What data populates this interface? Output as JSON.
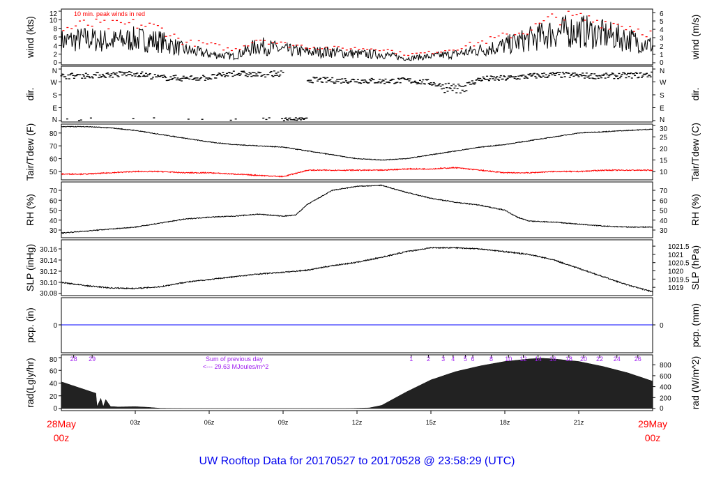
{
  "title": "UW Rooftop Data for 20170527  to  20170528 @ 23:58:29  (UTC)",
  "colors": {
    "title": "#0000ee",
    "date_labels": "#ff0000",
    "peak_winds": "#ff0000",
    "dewpoint": "#ff0000",
    "precip": "#0000ff",
    "radiation_fill": "#222222",
    "hourly_labels": "#a020f0",
    "line": "#000000"
  },
  "x_axis": {
    "start_date": "28May",
    "start_time": "00z",
    "end_date": "29May",
    "end_time": "00z",
    "ticks": [
      {
        "h": 3,
        "label": "03z"
      },
      {
        "h": 6,
        "label": "06z"
      },
      {
        "h": 9,
        "label": "09z"
      },
      {
        "h": 12,
        "label": "12z"
      },
      {
        "h": 15,
        "label": "15z"
      },
      {
        "h": 18,
        "label": "18z"
      },
      {
        "h": 21,
        "label": "21z"
      }
    ],
    "range_hours": [
      0,
      24
    ]
  },
  "chart_data": [
    {
      "type": "line",
      "id": "wind",
      "ylabel": "wind (kts)",
      "ylabel_right": "wind (m/s)",
      "annotation": "10 min. peak winds in red",
      "ylim": [
        0,
        12.5
      ],
      "yticks": [
        0,
        2,
        4,
        6,
        8,
        10,
        12
      ],
      "yticks_right": [
        0,
        1,
        2,
        3,
        4,
        5,
        6
      ],
      "hours": [
        0,
        1,
        2,
        3,
        4,
        5,
        6,
        7,
        8,
        9,
        10,
        11,
        12,
        13,
        14,
        15,
        16,
        17,
        18,
        19,
        20,
        21,
        22,
        23,
        24
      ],
      "series": [
        {
          "id": "mean",
          "values": [
            5,
            5.5,
            5,
            5.5,
            5,
            3,
            2,
            1.5,
            4,
            3,
            2.5,
            2.5,
            2,
            2,
            1,
            1.5,
            2,
            3,
            4,
            5.5,
            7,
            7.5,
            6.5,
            5.5,
            4
          ]
        },
        {
          "id": "peak_10min",
          "values": [
            8,
            9.5,
            9,
            9.5,
            8.5,
            5,
            4.5,
            3,
            6,
            4.5,
            4,
            3.5,
            3.5,
            3.5,
            2,
            2.5,
            3.5,
            5,
            6.5,
            8,
            11,
            11,
            10,
            9,
            7
          ]
        }
      ]
    },
    {
      "type": "scatter",
      "id": "direction",
      "ylabel": "dir.",
      "ylabel_right": "dir.",
      "yticks": [
        "N",
        "E",
        "S",
        "W",
        "N"
      ],
      "yticks_right": [
        "N",
        "E",
        "S",
        "W",
        "N"
      ],
      "ylim_degrees": [
        0,
        360
      ],
      "hours": [
        0,
        1,
        2,
        3,
        4,
        5,
        6,
        7,
        8,
        9,
        10,
        11,
        12,
        13,
        14,
        15,
        16,
        17,
        18,
        19,
        20,
        21,
        22,
        23,
        24
      ],
      "values_degrees": [
        310,
        315,
        320,
        330,
        300,
        295,
        300,
        330,
        320,
        330,
        285,
        280,
        280,
        275,
        280,
        265,
        210,
        290,
        295,
        310,
        320,
        315,
        310,
        315,
        320
      ]
    },
    {
      "type": "line",
      "id": "temperature",
      "ylabel": "Tair/Tdew (F)",
      "ylabel_right": "Tair/Tdew (C)",
      "yticks": [
        50,
        60,
        70,
        80
      ],
      "yticks_right": [
        10,
        15,
        20,
        25,
        30
      ],
      "hours": [
        0,
        1,
        2,
        3,
        4,
        5,
        6,
        7,
        8,
        9,
        10,
        11,
        12,
        13,
        14,
        15,
        16,
        17,
        18,
        19,
        20,
        21,
        22,
        23,
        24
      ],
      "series": [
        {
          "id": "Tair",
          "values": [
            85,
            85,
            84,
            82,
            79,
            76,
            73,
            71,
            70,
            69,
            66,
            63,
            60,
            59,
            60,
            63,
            66,
            69,
            71,
            74,
            77,
            80,
            81,
            82,
            83
          ]
        },
        {
          "id": "Tdew",
          "values": [
            48,
            48,
            49,
            50,
            50,
            49,
            49,
            48,
            47,
            46,
            51,
            51,
            51,
            51,
            52,
            52,
            53,
            51,
            49,
            49,
            50,
            50,
            51,
            51,
            51
          ]
        }
      ]
    },
    {
      "type": "line",
      "id": "rh",
      "ylabel": "RH (%)",
      "ylabel_right": "RH (%)",
      "yticks": [
        30,
        40,
        50,
        60,
        70
      ],
      "yticks_right": [
        30,
        40,
        50,
        60,
        70
      ],
      "hours": [
        0,
        1,
        2,
        3,
        4,
        5,
        6,
        7,
        8,
        9,
        9.5,
        10,
        11,
        12,
        13,
        14,
        15,
        16,
        17,
        18,
        18.5,
        19,
        20,
        21,
        22,
        23,
        24
      ],
      "values": [
        27,
        29,
        31,
        33,
        37,
        41,
        43,
        44,
        46,
        44,
        45,
        56,
        70,
        74,
        75,
        68,
        62,
        58,
        55,
        50,
        43,
        39,
        38,
        36,
        34,
        33,
        33
      ]
    },
    {
      "type": "line",
      "id": "slp",
      "ylabel": "SLP (inHg)",
      "ylabel_right": "SLP (hPa)",
      "yticks": [
        30.08,
        30.1,
        30.12,
        30.14,
        30.16
      ],
      "yticks_right": [
        "1019",
        "1019.5",
        "1020",
        "1020.5",
        "1021",
        "1021.5"
      ],
      "hours": [
        0,
        1,
        2,
        3,
        4,
        5,
        6,
        7,
        8,
        9,
        10,
        11,
        12,
        13,
        14,
        15,
        16,
        17,
        18,
        19,
        20,
        21,
        22,
        23,
        24
      ],
      "values": [
        30.1,
        30.094,
        30.09,
        30.089,
        30.092,
        30.1,
        30.105,
        30.11,
        30.115,
        30.118,
        30.122,
        30.13,
        30.136,
        30.145,
        30.155,
        30.162,
        30.162,
        30.16,
        30.155,
        30.15,
        30.14,
        30.125,
        30.11,
        30.095,
        30.083
      ]
    },
    {
      "type": "line",
      "id": "precip",
      "ylabel": "pcp. (in)",
      "ylabel_right": "pcp. (mm)",
      "yticks": [
        0
      ],
      "yticks_right": [
        0
      ],
      "values_constant": 0
    },
    {
      "type": "area",
      "id": "radiation",
      "ylabel": "rad(Lgly/hr)",
      "ylabel_right": "rad (W/m^2)",
      "yticks": [
        0,
        20,
        40,
        60,
        80
      ],
      "yticks_right": [
        0,
        200,
        400,
        600,
        800
      ],
      "annotation_line1": "Sum of previous day",
      "annotation_line2": "<--- 29.63 MJoules/m^2",
      "hours": [
        0,
        1.4,
        1.45,
        1.6,
        1.7,
        1.8,
        2.0,
        2.1,
        2.3,
        3,
        3.5,
        4,
        5,
        11.5,
        12.5,
        13,
        14,
        15,
        16,
        17,
        18,
        19,
        19.5,
        20,
        21,
        22,
        23,
        24
      ],
      "values": [
        42,
        24,
        3,
        16,
        3,
        14,
        3,
        3,
        2.5,
        3,
        2,
        0.5,
        0,
        0,
        1,
        5,
        26,
        45,
        58,
        67,
        74,
        78,
        79,
        78,
        74,
        66,
        56,
        43
      ],
      "hourly_labels": [
        {
          "h": 0.5,
          "label": "28"
        },
        {
          "h": 1.25,
          "label": "29"
        },
        {
          "h": 14.2,
          "label": "1"
        },
        {
          "h": 14.9,
          "label": "2"
        },
        {
          "h": 15.5,
          "label": "3"
        },
        {
          "h": 15.9,
          "label": "4"
        },
        {
          "h": 16.4,
          "label": "5"
        },
        {
          "h": 16.7,
          "label": "6"
        },
        {
          "h": 17.45,
          "label": "8"
        },
        {
          "h": 18.15,
          "label": "10"
        },
        {
          "h": 18.75,
          "label": "12"
        },
        {
          "h": 19.35,
          "label": "14"
        },
        {
          "h": 19.95,
          "label": "16"
        },
        {
          "h": 20.6,
          "label": "18"
        },
        {
          "h": 21.2,
          "label": "20"
        },
        {
          "h": 21.85,
          "label": "22"
        },
        {
          "h": 22.55,
          "label": "24"
        },
        {
          "h": 23.4,
          "label": "26"
        }
      ]
    }
  ]
}
